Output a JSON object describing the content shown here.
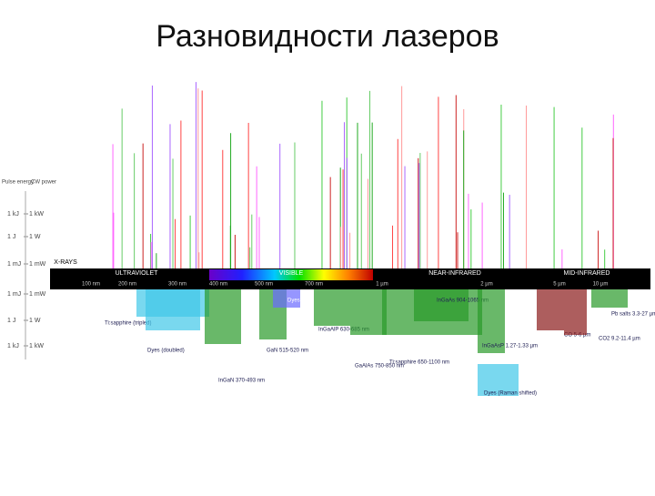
{
  "slide": {
    "title": "Разновидности лазеров"
  },
  "axis": {
    "left_title": "Pulse energy",
    "right_title": "CW power",
    "rows": [
      [
        "1 kJ",
        "1 kW"
      ],
      [
        "1 J",
        "1 W"
      ],
      [
        "1 mJ",
        "1 mW"
      ],
      [
        "1 mJ",
        "1 mW"
      ],
      [
        "1 J",
        "1 W"
      ],
      [
        "1 kJ",
        "1 kW"
      ]
    ]
  },
  "bands": [
    "X-RAYS",
    "ULTRAVIOLET",
    "VISIBLE",
    "NEAR-INFRARED",
    "MID-INFRARED"
  ],
  "scale": [
    "100 nm",
    "200 nm",
    "300 nm",
    "400 nm",
    "500 nm",
    "700 nm",
    "1 µm",
    "2 µm",
    "5 µm",
    "10 µm"
  ],
  "lasers": [
    {
      "label": "Ti:sapphire (tripled)",
      "color": "#40c8e8"
    },
    {
      "label": "Dyes (doubled)",
      "color": "#40c8e8"
    },
    {
      "label": "InGaN 370-493 nm",
      "color": "#2a9a2a"
    },
    {
      "label": "GaN 515-520 nm",
      "color": "#2a9a2a"
    },
    {
      "label": "Dyes (polymer) 560-570 nm",
      "color": "#6a6aff"
    },
    {
      "label": "InGaAlP 630-685 nm",
      "color": "#2a9a2a"
    },
    {
      "label": "GaAlAs 750-850 nm",
      "color": "#2a9a2a"
    },
    {
      "label": "Ti:sapphire 650-1100 nm",
      "color": "#2a9a2a"
    },
    {
      "label": "InGaAs 904-1065 nm",
      "color": "#2a9a2a"
    },
    {
      "label": "InGaAsP 1.27-1.33 µm",
      "color": "#2a9a2a"
    },
    {
      "label": "Dyes (Raman shifted)",
      "color": "#40c8e8"
    },
    {
      "label": "CO 5-6 µm",
      "color": "#8a1a1a"
    },
    {
      "label": "CO2 9.2-11.4 µm",
      "color": "#8a1a1a"
    },
    {
      "label": "Pb salts 3.3-27 µm",
      "color": "#2a9a2a"
    }
  ]
}
